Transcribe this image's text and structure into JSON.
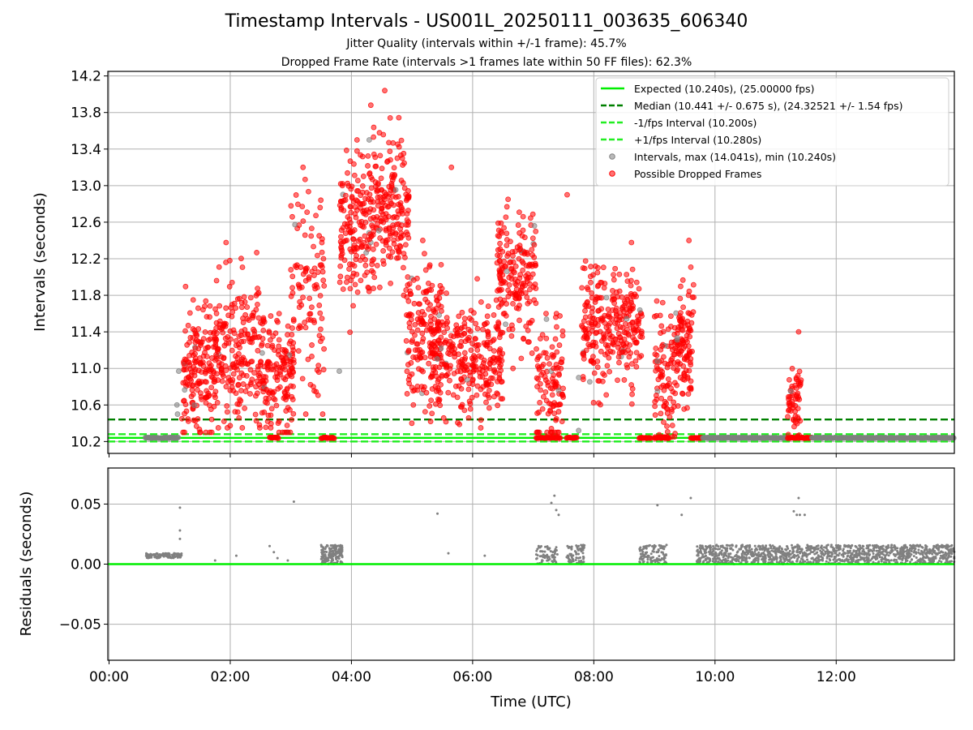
{
  "chart_data": [
    {
      "type": "scatter",
      "title": "Timestamp Intervals - US001L_20250111_003635_606340",
      "subtitles": [
        "Jitter Quality (intervals within +/-1 frame): 45.7%",
        "Dropped Frame Rate (intervals >1 frames late within 50 FF files): 62.3%"
      ],
      "ylabel": "Intervals (seconds)",
      "x_unit": "hours",
      "xlim": [
        -0.02,
        13.95
      ],
      "ylim": [
        10.07,
        14.25
      ],
      "y_ticks": [
        "10.2",
        "10.6",
        "11.0",
        "11.4",
        "11.8",
        "12.2",
        "12.6",
        "13.0",
        "13.4",
        "13.8",
        "14.2"
      ],
      "grid": true,
      "legend_position": "top-right",
      "lines": [
        {
          "name": "Expected (10.240s), (25.00000 fps)",
          "y": 10.24,
          "color": "#00ee00",
          "style": "solid"
        },
        {
          "name": "Median (10.441 +/- 0.675 s), (24.32521 +/- 1.54 fps)",
          "y": 10.441,
          "color": "#008000",
          "style": "dashed"
        },
        {
          "name": "-1/fps Interval (10.200s)",
          "y": 10.2,
          "color": "#22ee22",
          "style": "dashed"
        },
        {
          "name": "+1/fps Interval (10.280s)",
          "y": 10.28,
          "color": "#22ee22",
          "style": "dashed"
        }
      ],
      "series": [
        {
          "name": "Intervals, max (14.041s), min (10.240s)",
          "color": "#808080",
          "marker": "circle"
        },
        {
          "name": "Possible Dropped Frames",
          "color": "#ff0000",
          "marker": "circle"
        }
      ],
      "clusters": [
        {
          "x": [
            1.2,
            1.75
          ],
          "y_mean": 11.0,
          "y_sd": 0.35,
          "n": 170,
          "y_min": 10.3,
          "y_max": 12.5
        },
        {
          "x": [
            1.75,
            2.55
          ],
          "y_mean": 11.25,
          "y_sd": 0.4,
          "n": 230,
          "y_min": 10.35,
          "y_max": 12.6
        },
        {
          "x": [
            2.55,
            3.05
          ],
          "y_mean": 10.85,
          "y_sd": 0.35,
          "n": 140,
          "y_min": 10.3,
          "y_max": 11.6
        },
        {
          "x": [
            3.0,
            3.55
          ],
          "y_mean": 11.9,
          "y_sd": 0.6,
          "n": 110,
          "y_min": 10.5,
          "y_max": 13.2
        },
        {
          "x": [
            3.8,
            4.35
          ],
          "y_mean": 12.55,
          "y_sd": 0.4,
          "n": 170,
          "y_min": 11.0,
          "y_max": 13.5
        },
        {
          "x": [
            4.35,
            4.95
          ],
          "y_mean": 12.75,
          "y_sd": 0.4,
          "n": 190,
          "y_min": 11.8,
          "y_max": 14.04
        },
        {
          "x": [
            4.9,
            5.5
          ],
          "y_mean": 11.35,
          "y_sd": 0.4,
          "n": 160,
          "y_min": 10.4,
          "y_max": 12.4
        },
        {
          "x": [
            5.3,
            6.5
          ],
          "y_mean": 11.1,
          "y_sd": 0.3,
          "n": 300,
          "y_min": 10.35,
          "y_max": 12.0
        },
        {
          "x": [
            6.4,
            7.05
          ],
          "y_mean": 12.0,
          "y_sd": 0.35,
          "n": 190,
          "y_min": 11.0,
          "y_max": 12.85
        },
        {
          "x": [
            7.05,
            7.5
          ],
          "y_mean": 10.8,
          "y_sd": 0.4,
          "n": 110,
          "y_min": 10.3,
          "y_max": 12.9
        },
        {
          "x": [
            7.8,
            8.8
          ],
          "y_mean": 11.45,
          "y_sd": 0.35,
          "n": 280,
          "y_min": 10.5,
          "y_max": 12.4
        },
        {
          "x": [
            9.0,
            9.35
          ],
          "y_mean": 10.85,
          "y_sd": 0.4,
          "n": 100,
          "y_min": 10.25,
          "y_max": 12.0
        },
        {
          "x": [
            9.35,
            9.65
          ],
          "y_mean": 11.2,
          "y_sd": 0.35,
          "n": 110,
          "y_min": 10.4,
          "y_max": 12.4
        },
        {
          "x": [
            11.2,
            11.42
          ],
          "y_mean": 10.6,
          "y_sd": 0.2,
          "n": 55,
          "y_min": 10.26,
          "y_max": 11.4
        }
      ],
      "outliers": [
        {
          "x": 4.32,
          "y": 13.88
        },
        {
          "x": 4.55,
          "y": 14.04
        },
        {
          "x": 5.65,
          "y": 13.2
        },
        {
          "x": 7.56,
          "y": 12.9
        },
        {
          "x": 9.57,
          "y": 12.4
        },
        {
          "x": 3.85,
          "y": 13.0
        },
        {
          "x": 11.38,
          "y": 11.4
        }
      ],
      "baseline_runs": [
        {
          "x": [
            0.6,
            1.15
          ],
          "y": 10.24,
          "color": "#808080"
        },
        {
          "x": [
            2.65,
            2.8
          ],
          "y": 10.24,
          "color": "#ff0000"
        },
        {
          "x": [
            3.5,
            3.72
          ],
          "y": 10.24,
          "color": "#ff0000"
        },
        {
          "x": [
            7.05,
            7.45
          ],
          "y": 10.24,
          "color": "#ff0000"
        },
        {
          "x": [
            7.55,
            7.72
          ],
          "y": 10.24,
          "color": "#ff0000"
        },
        {
          "x": [
            8.75,
            8.95
          ],
          "y": 10.24,
          "color": "#ff0000"
        },
        {
          "x": [
            9.0,
            9.25
          ],
          "y": 10.24,
          "color": "#ff0000"
        },
        {
          "x": [
            9.6,
            9.8
          ],
          "y": 10.24,
          "color": "#ff0000"
        },
        {
          "x": [
            9.8,
            11.2
          ],
          "y": 10.24,
          "color": "#808080"
        },
        {
          "x": [
            11.2,
            11.6
          ],
          "y": 10.24,
          "color": "#ff0000"
        },
        {
          "x": [
            11.6,
            13.95
          ],
          "y": 10.24,
          "color": "#808080"
        }
      ]
    },
    {
      "type": "scatter",
      "xlabel": "Time (UTC)",
      "ylabel": "Residuals (seconds)",
      "x_unit": "hours",
      "xlim": [
        -0.02,
        13.95
      ],
      "ylim": [
        -0.08,
        0.08
      ],
      "y_ticks": [
        "−0.05",
        "0.00",
        "0.05"
      ],
      "x_ticks": [
        "00:00",
        "02:00",
        "04:00",
        "06:00",
        "08:00",
        "10:00",
        "12:00"
      ],
      "grid": true,
      "zero_line_color": "#00ee00",
      "series": [
        {
          "name": "Residuals",
          "color": "#808080",
          "marker": "point"
        }
      ],
      "bands": [
        {
          "x": [
            0.6,
            1.2
          ],
          "y": [
            0.005,
            0.009
          ],
          "n": 120
        },
        {
          "x": [
            3.5,
            3.85
          ],
          "y": [
            0.0,
            0.016
          ],
          "n": 180
        },
        {
          "x": [
            7.05,
            7.4
          ],
          "y": [
            0.0,
            0.016
          ],
          "n": 70
        },
        {
          "x": [
            7.55,
            7.85
          ],
          "y": [
            0.0,
            0.016
          ],
          "n": 80
        },
        {
          "x": [
            8.75,
            9.2
          ],
          "y": [
            0.0,
            0.016
          ],
          "n": 110
        },
        {
          "x": [
            9.7,
            11.2
          ],
          "y": [
            0.0,
            0.016
          ],
          "n": 480
        },
        {
          "x": [
            11.2,
            13.95
          ],
          "y": [
            0.0,
            0.016
          ],
          "n": 820
        }
      ],
      "points": [
        {
          "x": 1.17,
          "y": 0.047
        },
        {
          "x": 1.17,
          "y": 0.028
        },
        {
          "x": 1.17,
          "y": 0.021
        },
        {
          "x": 1.75,
          "y": 0.003
        },
        {
          "x": 2.1,
          "y": 0.007
        },
        {
          "x": 2.65,
          "y": 0.015
        },
        {
          "x": 2.72,
          "y": 0.01
        },
        {
          "x": 2.78,
          "y": 0.005
        },
        {
          "x": 2.95,
          "y": 0.003
        },
        {
          "x": 3.05,
          "y": 0.052
        },
        {
          "x": 5.42,
          "y": 0.042
        },
        {
          "x": 5.6,
          "y": 0.009
        },
        {
          "x": 6.2,
          "y": 0.007
        },
        {
          "x": 7.3,
          "y": 0.051
        },
        {
          "x": 7.35,
          "y": 0.057
        },
        {
          "x": 7.38,
          "y": 0.045
        },
        {
          "x": 7.42,
          "y": 0.041
        },
        {
          "x": 9.05,
          "y": 0.049
        },
        {
          "x": 9.45,
          "y": 0.041
        },
        {
          "x": 9.6,
          "y": 0.055
        },
        {
          "x": 11.3,
          "y": 0.044
        },
        {
          "x": 11.35,
          "y": 0.041
        },
        {
          "x": 11.38,
          "y": 0.055
        },
        {
          "x": 11.4,
          "y": 0.041
        },
        {
          "x": 11.48,
          "y": 0.041
        }
      ]
    }
  ]
}
